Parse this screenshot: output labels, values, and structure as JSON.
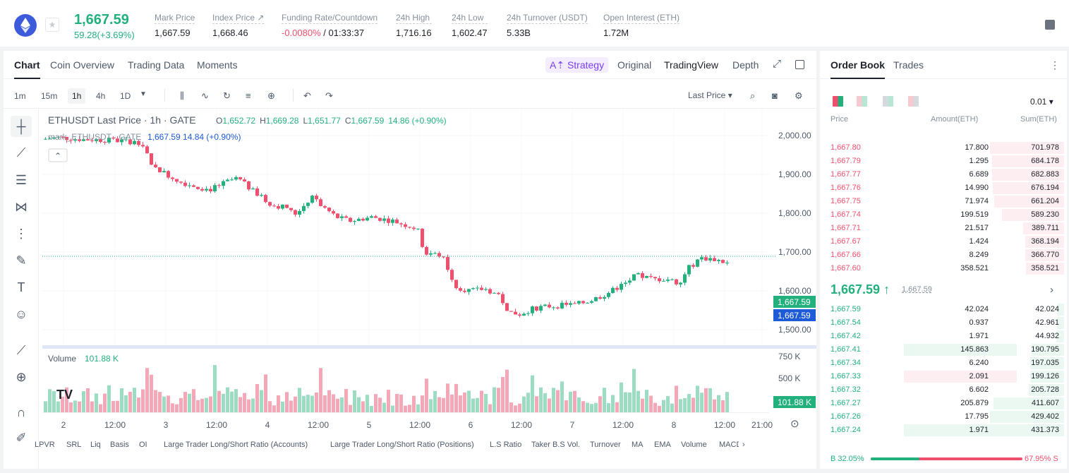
{
  "header": {
    "last_price": "1,667.59",
    "change": "59.28(+3.69%)",
    "stats": [
      {
        "label": "Mark Price",
        "value": "1,667.59"
      },
      {
        "label": "Index Price ↗",
        "value": "1,668.46"
      },
      {
        "label": "Funding Rate/Countdown",
        "value_red": "-0.0080%",
        "value": " / 01:33:37"
      },
      {
        "label": "24h High",
        "value": "1,716.16"
      },
      {
        "label": "24h Low",
        "value": "1,602.47"
      },
      {
        "label": "24h Turnover (USDT)",
        "value": "5.33B"
      },
      {
        "label": "Open Interest (ETH)",
        "value": "1.72M"
      }
    ]
  },
  "chart_tabs": [
    "Chart",
    "Coin Overview",
    "Trading Data",
    "Moments"
  ],
  "view_tabs": {
    "strategy": "A⇡ Strategy",
    "original": "Original",
    "tradingview": "TradingView",
    "depth": "Depth"
  },
  "timeframes": [
    "1m",
    "15m",
    "1h",
    "4h",
    "1D"
  ],
  "price_type": "Last Price ▾",
  "legend": {
    "symbol": "ETHUSDT Last Price · 1h · GATE",
    "o_l": "O",
    "o": "1,652.72",
    "h_l": "H",
    "h": "1,669.28",
    "l_l": "L",
    "l": "1,651.77",
    "c_l": "C",
    "c": "1,667.59",
    "chg": "14.86 (+0.90%)",
    "mark": "mark_ETHUSDT · GATE",
    "mark_val": "1,667.59 14.84 (+0.90%)",
    "vol_label": "Volume",
    "vol_val": "101.88 K"
  },
  "price_axis": [
    "2,000.00",
    "1,900.00",
    "1,800.00",
    "1,700.00",
    "1,600.00",
    "1,500.00"
  ],
  "price_tags": {
    "last": "1,667.59",
    "mark": "1,667.59"
  },
  "vol_axis": [
    "750 K",
    "500 K",
    "250 K"
  ],
  "vol_tag": "101.88 K",
  "time_axis": [
    "2",
    "12:00",
    "3",
    "12:00",
    "4",
    "12:00",
    "5",
    "12:00",
    "6",
    "12:00",
    "7",
    "12:00",
    "8",
    "12:00",
    "21:00"
  ],
  "bottom_tabs": [
    "LPVR",
    "SRL",
    "Liq",
    "Basis",
    "OI",
    "Large Trader Long/Short Ratio (Accounts)",
    "Large Trader Long/Short Ratio (Positions)",
    "L.S Ratio",
    "Taker B.S Vol.",
    "Turnover",
    "MA",
    "EMA",
    "Volume",
    "MACD"
  ],
  "orderbook": {
    "tabs": [
      "Order Book",
      "Trades"
    ],
    "precision": "0.01 ▾",
    "headers": [
      "Price",
      "Amount(ETH)",
      "Sum(ETH)"
    ],
    "asks": [
      {
        "price": "1,667.80",
        "amount": "17.800",
        "sum": "701.978",
        "depth": 1
      },
      {
        "price": "1,667.79",
        "amount": "1.295",
        "sum": "684.178",
        "depth": 0.975
      },
      {
        "price": "1,667.77",
        "amount": "6.689",
        "sum": "682.883",
        "depth": 0.973
      },
      {
        "price": "1,667.76",
        "amount": "14.990",
        "sum": "676.194",
        "depth": 0.963
      },
      {
        "price": "1,667.75",
        "amount": "71.974",
        "sum": "661.204",
        "depth": 0.942
      },
      {
        "price": "1,667.74",
        "amount": "199.519",
        "sum": "589.230",
        "depth": 0.84
      },
      {
        "price": "1,667.71",
        "amount": "21.517",
        "sum": "389.711",
        "depth": 0.555
      },
      {
        "price": "1,667.67",
        "amount": "1.424",
        "sum": "368.194",
        "depth": 0.524
      },
      {
        "price": "1,667.66",
        "amount": "8.249",
        "sum": "366.770",
        "depth": 0.522
      },
      {
        "price": "1,667.60",
        "amount": "358.521",
        "sum": "358.521",
        "depth": 0.511
      }
    ],
    "mid": "1,667.59 ↑",
    "mid_mark": "1,667.59",
    "bids": [
      {
        "price": "1,667.59",
        "amount": "42.024",
        "sum": "42.024",
        "depth": 0.098
      },
      {
        "price": "1,667.54",
        "amount": "0.937",
        "sum": "42.961",
        "depth": 0.1
      },
      {
        "price": "1,667.42",
        "amount": "1.971",
        "sum": "44.932",
        "depth": 0.104
      },
      {
        "price": "1,667.41",
        "amount": "145.863",
        "sum": "190.795",
        "depth": 0.443,
        "hl": "green"
      },
      {
        "price": "1,667.34",
        "amount": "6.240",
        "sum": "197.035",
        "depth": 0.457
      },
      {
        "price": "1,667.33",
        "amount": "2.091",
        "sum": "199.126",
        "depth": 0.462,
        "hl": "red"
      },
      {
        "price": "1,667.32",
        "amount": "6.602",
        "sum": "205.728",
        "depth": 0.477
      },
      {
        "price": "1,667.27",
        "amount": "205.879",
        "sum": "411.607",
        "depth": 0.955
      },
      {
        "price": "1,667.26",
        "amount": "17.795",
        "sum": "429.402",
        "depth": 0.996
      },
      {
        "price": "1,667.24",
        "amount": "1.971",
        "sum": "431.373",
        "depth": 1,
        "hl": "green"
      }
    ],
    "ratio_b": "B 32.05%",
    "ratio_s": "67.95% S",
    "ratio_b_frac": 0.3205
  },
  "colors": {
    "up": "#22b07d",
    "down": "#f0506e",
    "blue": "#1e5bd7"
  }
}
